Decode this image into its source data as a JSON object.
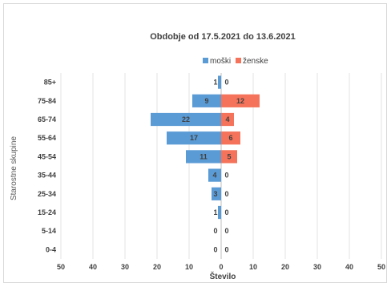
{
  "chart_data": {
    "type": "bar",
    "orientation": "horizontal-population-pyramid",
    "title": "Obdobje od 17.5.2021 do 13.6.2021",
    "xlabel": "Število",
    "ylabel": "Starostne skupine",
    "categories": [
      "85+",
      "75-84",
      "65-74",
      "55-64",
      "45-54",
      "35-44",
      "25-34",
      "15-24",
      "5-14",
      "0-4"
    ],
    "series": [
      {
        "name": "moški",
        "values": [
          1,
          9,
          22,
          17,
          11,
          4,
          3,
          1,
          0,
          0
        ],
        "color": "#5b9bd5",
        "side": "left"
      },
      {
        "name": "ženske",
        "values": [
          0,
          12,
          4,
          6,
          5,
          0,
          0,
          0,
          0,
          0
        ],
        "color": "#f4735a",
        "side": "right"
      }
    ],
    "xlim": [
      -50,
      50
    ],
    "x_ticks": [
      -50,
      -40,
      -30,
      -20,
      -10,
      0,
      10,
      20,
      30,
      40,
      50
    ],
    "x_tick_labels": [
      "50",
      "40",
      "30",
      "20",
      "10",
      "0",
      "10",
      "20",
      "30",
      "40",
      "50"
    ],
    "grid": "vertical",
    "legend": "top"
  }
}
